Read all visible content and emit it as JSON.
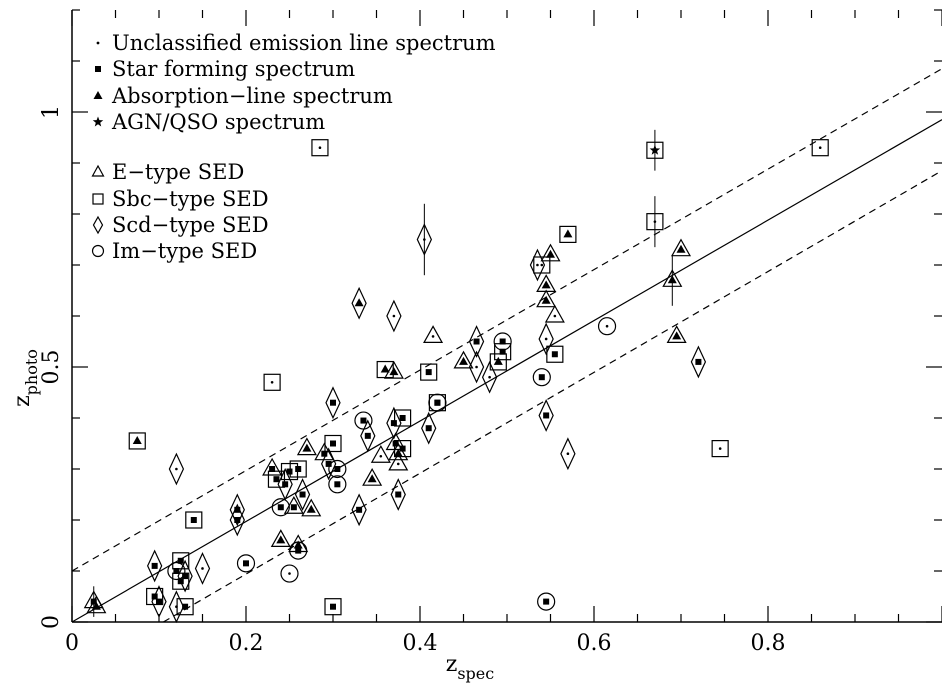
{
  "chart_data": {
    "type": "scatter",
    "title": "",
    "xlabel": "z",
    "xlabel_sub": "spec",
    "ylabel": "z",
    "ylabel_sub": "photo",
    "xlim": [
      0,
      1.0
    ],
    "ylim": [
      0,
      1.2
    ],
    "x_ticks": [
      {
        "value": 0,
        "label": "0"
      },
      {
        "value": 0.2,
        "label": "0.2"
      },
      {
        "value": 0.4,
        "label": "0.4"
      },
      {
        "value": 0.6,
        "label": "0.6"
      },
      {
        "value": 0.8,
        "label": "0.8"
      }
    ],
    "y_ticks": [
      {
        "value": 0,
        "label": "0"
      },
      {
        "value": 0.5,
        "label": "0.5"
      },
      {
        "value": 1,
        "label": "1"
      }
    ],
    "grid": false,
    "legend_position": "top-left",
    "legend_spectrum": [
      {
        "symbol": "dot",
        "label": "Unclassified emission line spectrum"
      },
      {
        "symbol": "square-filled",
        "label": "Star forming spectrum"
      },
      {
        "symbol": "triangle-filled",
        "label": "Absorption−line spectrum"
      },
      {
        "symbol": "star",
        "label": "AGN/QSO spectrum"
      }
    ],
    "legend_sed": [
      {
        "symbol": "triangle-open",
        "label": "E−type SED"
      },
      {
        "symbol": "square-open",
        "label": "Sbc−type SED"
      },
      {
        "symbol": "diamond-open",
        "label": "Scd−type SED"
      },
      {
        "symbol": "circle-open",
        "label": "Im−type SED"
      }
    ],
    "lines": [
      {
        "style": "solid",
        "points": [
          [
            0.0,
            0.0
          ],
          [
            1.0,
            0.985
          ]
        ]
      },
      {
        "style": "dashed",
        "points": [
          [
            0.0,
            0.1
          ],
          [
            1.0,
            1.085
          ]
        ]
      },
      {
        "style": "dashed",
        "points": [
          [
            0.105,
            0.0
          ],
          [
            1.0,
            0.885
          ]
        ]
      }
    ],
    "points": [
      {
        "x": 0.025,
        "y": 0.04,
        "sed": "E",
        "spec": "star-forming",
        "err": 0.03
      },
      {
        "x": 0.028,
        "y": 0.03,
        "sed": "E",
        "spec": "absorption"
      },
      {
        "x": 0.075,
        "y": 0.355,
        "sed": "Sbc",
        "spec": "absorption"
      },
      {
        "x": 0.095,
        "y": 0.11,
        "sed": "Scd",
        "spec": "star-forming"
      },
      {
        "x": 0.095,
        "y": 0.05,
        "sed": "Sbc",
        "spec": "star-forming"
      },
      {
        "x": 0.1,
        "y": 0.04,
        "sed": "Scd",
        "spec": "star-forming"
      },
      {
        "x": 0.12,
        "y": 0.3,
        "sed": "Scd",
        "spec": "unclassified"
      },
      {
        "x": 0.12,
        "y": 0.1,
        "sed": "Im",
        "spec": "star-forming"
      },
      {
        "x": 0.125,
        "y": 0.08,
        "sed": "Sbc",
        "spec": "star-forming"
      },
      {
        "x": 0.125,
        "y": 0.12,
        "sed": "Sbc",
        "spec": "star-forming"
      },
      {
        "x": 0.13,
        "y": 0.09,
        "sed": "Scd",
        "spec": "star-forming"
      },
      {
        "x": 0.12,
        "y": 0.03,
        "sed": "Scd",
        "spec": "unclassified"
      },
      {
        "x": 0.13,
        "y": 0.03,
        "sed": "Sbc",
        "spec": "star-forming"
      },
      {
        "x": 0.14,
        "y": 0.2,
        "sed": "Sbc",
        "spec": "star-forming"
      },
      {
        "x": 0.15,
        "y": 0.105,
        "sed": "Scd",
        "spec": "unclassified"
      },
      {
        "x": 0.19,
        "y": 0.22,
        "sed": "Scd",
        "spec": "star-forming"
      },
      {
        "x": 0.19,
        "y": 0.2,
        "sed": "Scd",
        "spec": "star-forming"
      },
      {
        "x": 0.2,
        "y": 0.115,
        "sed": "Im",
        "spec": "star-forming"
      },
      {
        "x": 0.23,
        "y": 0.47,
        "sed": "Sbc",
        "spec": "unclassified"
      },
      {
        "x": 0.23,
        "y": 0.3,
        "sed": "E",
        "spec": "star-forming"
      },
      {
        "x": 0.235,
        "y": 0.28,
        "sed": "Sbc",
        "spec": "star-forming"
      },
      {
        "x": 0.24,
        "y": 0.225,
        "sed": "Im",
        "spec": "star-forming"
      },
      {
        "x": 0.24,
        "y": 0.16,
        "sed": "E",
        "spec": "absorption"
      },
      {
        "x": 0.245,
        "y": 0.27,
        "sed": "Scd",
        "spec": "star-forming"
      },
      {
        "x": 0.25,
        "y": 0.295,
        "sed": "Sbc",
        "spec": "star-forming"
      },
      {
        "x": 0.25,
        "y": 0.095,
        "sed": "Im",
        "spec": "unclassified"
      },
      {
        "x": 0.255,
        "y": 0.225,
        "sed": "E",
        "spec": "star-forming"
      },
      {
        "x": 0.26,
        "y": 0.3,
        "sed": "Sbc",
        "spec": "star-forming"
      },
      {
        "x": 0.26,
        "y": 0.15,
        "sed": "E",
        "spec": "absorption"
      },
      {
        "x": 0.26,
        "y": 0.14,
        "sed": "Im",
        "spec": "star-forming"
      },
      {
        "x": 0.265,
        "y": 0.25,
        "sed": "Scd",
        "spec": "star-forming"
      },
      {
        "x": 0.27,
        "y": 0.34,
        "sed": "E",
        "spec": "absorption"
      },
      {
        "x": 0.275,
        "y": 0.22,
        "sed": "E",
        "spec": "absorption"
      },
      {
        "x": 0.285,
        "y": 0.93,
        "sed": "Sbc",
        "spec": "unclassified"
      },
      {
        "x": 0.29,
        "y": 0.33,
        "sed": "E",
        "spec": "star-forming"
      },
      {
        "x": 0.295,
        "y": 0.31,
        "sed": "Scd",
        "spec": "star-forming"
      },
      {
        "x": 0.3,
        "y": 0.35,
        "sed": "Sbc",
        "spec": "star-forming"
      },
      {
        "x": 0.3,
        "y": 0.43,
        "sed": "Scd",
        "spec": "star-forming"
      },
      {
        "x": 0.3,
        "y": 0.03,
        "sed": "Sbc",
        "spec": "star-forming"
      },
      {
        "x": 0.305,
        "y": 0.27,
        "sed": "Im",
        "spec": "star-forming"
      },
      {
        "x": 0.305,
        "y": 0.3,
        "sed": "Im",
        "spec": "star-forming"
      },
      {
        "x": 0.33,
        "y": 0.625,
        "sed": "Scd",
        "spec": "absorption"
      },
      {
        "x": 0.33,
        "y": 0.22,
        "sed": "Scd",
        "spec": "star-forming"
      },
      {
        "x": 0.335,
        "y": 0.395,
        "sed": "Im",
        "spec": "star-forming"
      },
      {
        "x": 0.34,
        "y": 0.365,
        "sed": "Scd",
        "spec": "star-forming"
      },
      {
        "x": 0.345,
        "y": 0.28,
        "sed": "E",
        "spec": "absorption"
      },
      {
        "x": 0.355,
        "y": 0.325,
        "sed": "E",
        "spec": "unclassified"
      },
      {
        "x": 0.36,
        "y": 0.495,
        "sed": "Sbc",
        "spec": "absorption"
      },
      {
        "x": 0.37,
        "y": 0.49,
        "sed": "E",
        "spec": "absorption"
      },
      {
        "x": 0.37,
        "y": 0.6,
        "sed": "Scd",
        "spec": "unclassified"
      },
      {
        "x": 0.37,
        "y": 0.39,
        "sed": "Scd",
        "spec": "star-forming"
      },
      {
        "x": 0.372,
        "y": 0.35,
        "sed": "E",
        "spec": "star-forming"
      },
      {
        "x": 0.375,
        "y": 0.33,
        "sed": "E",
        "spec": "absorption"
      },
      {
        "x": 0.375,
        "y": 0.31,
        "sed": "E",
        "spec": "unclassified"
      },
      {
        "x": 0.375,
        "y": 0.25,
        "sed": "Scd",
        "spec": "star-forming"
      },
      {
        "x": 0.38,
        "y": 0.4,
        "sed": "Sbc",
        "spec": "star-forming"
      },
      {
        "x": 0.38,
        "y": 0.34,
        "sed": "Sbc",
        "spec": "star-forming"
      },
      {
        "x": 0.405,
        "y": 0.75,
        "sed": "Scd",
        "spec": "unclassified",
        "err": 0.07
      },
      {
        "x": 0.41,
        "y": 0.49,
        "sed": "Sbc",
        "spec": "star-forming"
      },
      {
        "x": 0.41,
        "y": 0.38,
        "sed": "Scd",
        "spec": "star-forming"
      },
      {
        "x": 0.415,
        "y": 0.56,
        "sed": "E",
        "spec": "unclassified"
      },
      {
        "x": 0.42,
        "y": 0.43,
        "sed": "Sbc",
        "spec": "star-forming"
      },
      {
        "x": 0.42,
        "y": 0.43,
        "sed": "Im",
        "spec": "star-forming"
      },
      {
        "x": 0.45,
        "y": 0.51,
        "sed": "E",
        "spec": "absorption"
      },
      {
        "x": 0.465,
        "y": 0.55,
        "sed": "Scd",
        "spec": "star-forming"
      },
      {
        "x": 0.465,
        "y": 0.5,
        "sed": "Scd",
        "spec": "unclassified"
      },
      {
        "x": 0.48,
        "y": 0.48,
        "sed": "Scd",
        "spec": "unclassified"
      },
      {
        "x": 0.49,
        "y": 0.51,
        "sed": "Sbc",
        "spec": "absorption"
      },
      {
        "x": 0.495,
        "y": 0.53,
        "sed": "Sbc",
        "spec": "star-forming"
      },
      {
        "x": 0.495,
        "y": 0.55,
        "sed": "Im",
        "spec": "star-forming"
      },
      {
        "x": 0.535,
        "y": 0.7,
        "sed": "Scd",
        "spec": "unclassified"
      },
      {
        "x": 0.54,
        "y": 0.48,
        "sed": "Im",
        "spec": "star-forming"
      },
      {
        "x": 0.54,
        "y": 0.7,
        "sed": "Sbc",
        "spec": "unclassified"
      },
      {
        "x": 0.545,
        "y": 0.63,
        "sed": "E",
        "spec": "absorption"
      },
      {
        "x": 0.545,
        "y": 0.66,
        "sed": "E",
        "spec": "absorption"
      },
      {
        "x": 0.545,
        "y": 0.555,
        "sed": "Scd",
        "spec": "unclassified"
      },
      {
        "x": 0.545,
        "y": 0.405,
        "sed": "Scd",
        "spec": "star-forming"
      },
      {
        "x": 0.545,
        "y": 0.04,
        "sed": "Im",
        "spec": "star-forming"
      },
      {
        "x": 0.55,
        "y": 0.72,
        "sed": "E",
        "spec": "absorption"
      },
      {
        "x": 0.555,
        "y": 0.6,
        "sed": "E",
        "spec": "unclassified"
      },
      {
        "x": 0.555,
        "y": 0.525,
        "sed": "Sbc",
        "spec": "star-forming"
      },
      {
        "x": 0.57,
        "y": 0.76,
        "sed": "Sbc",
        "spec": "absorption"
      },
      {
        "x": 0.57,
        "y": 0.33,
        "sed": "Scd",
        "spec": "unclassified"
      },
      {
        "x": 0.615,
        "y": 0.58,
        "sed": "Im",
        "spec": "unclassified"
      },
      {
        "x": 0.67,
        "y": 0.925,
        "sed": "Sbc",
        "spec": "agn",
        "err": 0.04
      },
      {
        "x": 0.67,
        "y": 0.785,
        "sed": "Sbc",
        "spec": "unclassified",
        "err": 0.05
      },
      {
        "x": 0.69,
        "y": 0.67,
        "sed": "E",
        "spec": "absorption",
        "err": 0.05
      },
      {
        "x": 0.695,
        "y": 0.56,
        "sed": "E",
        "spec": "absorption"
      },
      {
        "x": 0.7,
        "y": 0.73,
        "sed": "E",
        "spec": "absorption"
      },
      {
        "x": 0.72,
        "y": 0.51,
        "sed": "Scd",
        "spec": "star-forming"
      },
      {
        "x": 0.745,
        "y": 0.34,
        "sed": "Sbc",
        "spec": "unclassified"
      },
      {
        "x": 0.86,
        "y": 0.93,
        "sed": "Sbc",
        "spec": "unclassified"
      }
    ]
  }
}
